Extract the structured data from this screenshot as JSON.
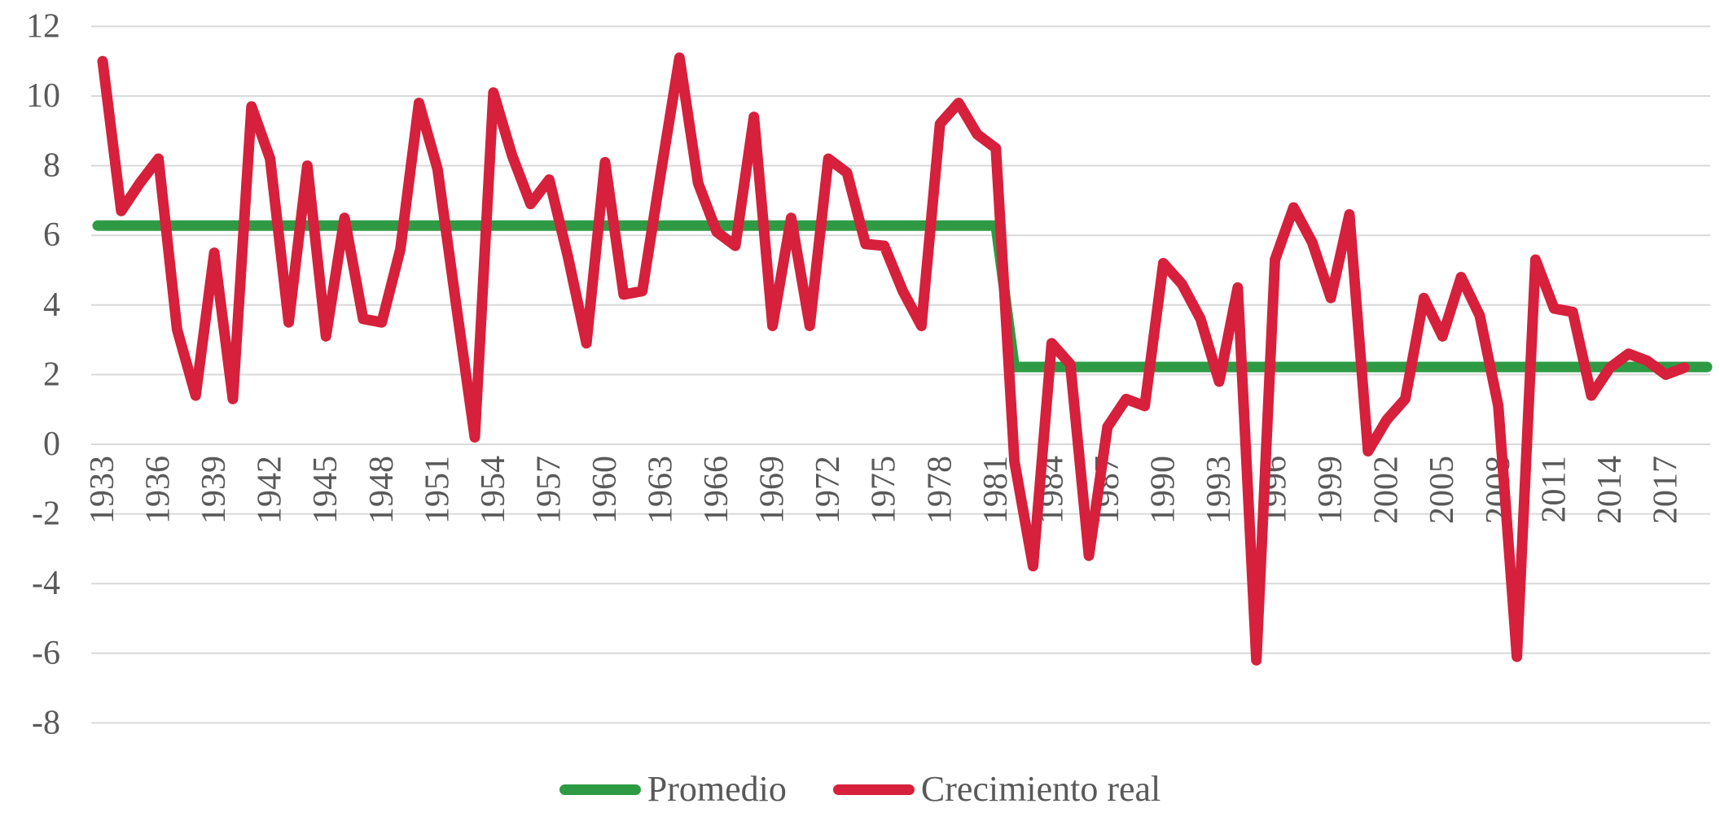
{
  "chart_data": {
    "type": "line",
    "title": "",
    "xlabel": "",
    "ylabel": "",
    "ylim": [
      -8,
      12
    ],
    "ytick_step": 2,
    "yticks": [
      -8,
      -6,
      -4,
      -2,
      0,
      2,
      4,
      6,
      8,
      10,
      12
    ],
    "xticks": [
      1933,
      1936,
      1939,
      1942,
      1945,
      1948,
      1951,
      1954,
      1957,
      1960,
      1963,
      1966,
      1969,
      1972,
      1975,
      1978,
      1981,
      1984,
      1987,
      1990,
      1993,
      1996,
      1999,
      2002,
      2005,
      2008,
      2011,
      2014,
      2017
    ],
    "grid": "horizontal",
    "legend_position": "bottom-center",
    "years": [
      1933,
      2018
    ],
    "series": [
      {
        "name": "Promedio",
        "color": "#2E9B44",
        "type": "step-average",
        "segments": [
          {
            "from": 1933,
            "to": 1981,
            "value": 6.28
          },
          {
            "from": 1982,
            "to": 2018,
            "value": 2.22
          }
        ]
      },
      {
        "name": "Crecimiento real",
        "color": "#D6203C",
        "type": "line",
        "x_start": 1933,
        "values": [
          11.0,
          6.7,
          7.5,
          8.2,
          3.3,
          1.4,
          5.5,
          1.3,
          9.7,
          8.2,
          3.5,
          8.0,
          3.1,
          6.5,
          3.6,
          3.5,
          5.6,
          9.8,
          7.9,
          4.0,
          0.2,
          10.1,
          8.3,
          6.9,
          7.6,
          5.4,
          2.9,
          8.1,
          4.3,
          4.4,
          7.8,
          11.1,
          7.5,
          6.1,
          5.7,
          9.4,
          3.4,
          6.5,
          3.4,
          8.2,
          7.8,
          5.75,
          5.7,
          4.4,
          3.4,
          9.2,
          9.8,
          8.9,
          8.5,
          -0.5,
          -3.5,
          2.9,
          2.3,
          -3.2,
          0.5,
          1.3,
          1.1,
          5.2,
          4.6,
          3.6,
          1.8,
          4.5,
          -6.2,
          5.3,
          6.8,
          5.8,
          4.2,
          6.6,
          -0.2,
          0.7,
          1.3,
          4.2,
          3.1,
          4.8,
          3.7,
          1.1,
          -6.1,
          5.3,
          3.9,
          3.8,
          1.4,
          2.2,
          2.6,
          2.4,
          2.0,
          2.2
        ]
      }
    ]
  },
  "legend": {
    "items": [
      {
        "label": "Promedio",
        "color": "#2E9B44"
      },
      {
        "label": "Crecimiento real",
        "color": "#D6203C"
      }
    ]
  },
  "style": {
    "axis_text_color": "#595959",
    "gridline_color": "#D9D9D9",
    "background": "#ffffff"
  }
}
